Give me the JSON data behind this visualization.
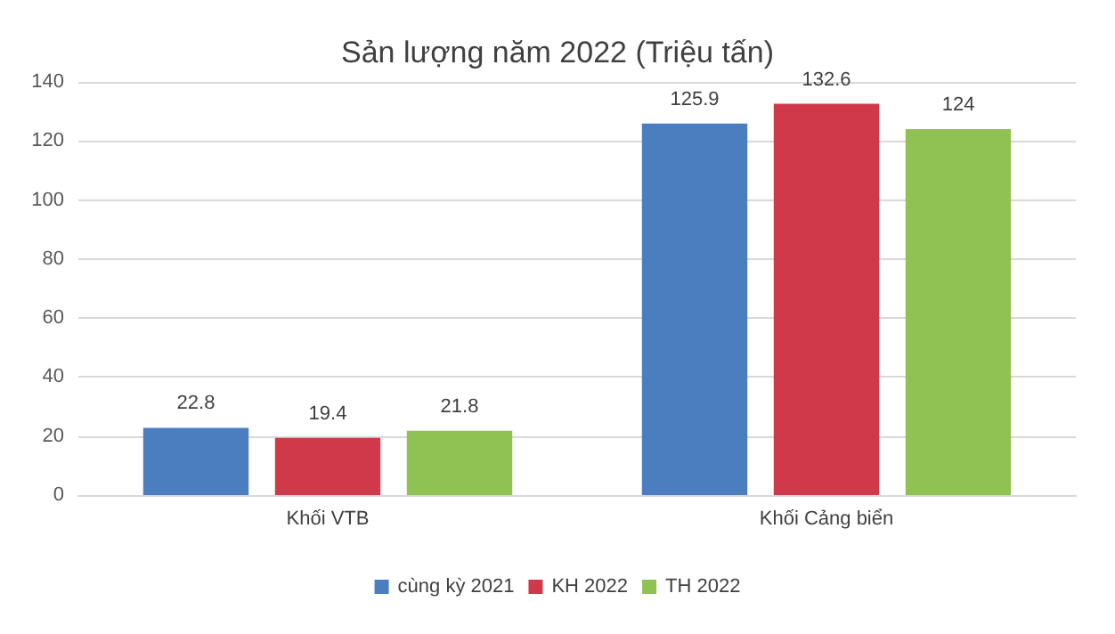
{
  "chart_data": {
    "type": "bar",
    "title": "Sản lượng năm 2022 (Triệu tấn)",
    "categories": [
      "Khối VTB",
      "Khối Cảng biển"
    ],
    "series": [
      {
        "name": "cùng kỳ 2021",
        "color": "#4a7ebf",
        "values": [
          22.8,
          125.9
        ]
      },
      {
        "name": "KH 2022",
        "color": "#d0394a",
        "values": [
          19.4,
          132.6
        ]
      },
      {
        "name": "TH 2022",
        "color": "#8fc253",
        "values": [
          21.8,
          124
        ]
      }
    ],
    "ylim": [
      0,
      140
    ],
    "yticks": [
      0,
      20,
      40,
      60,
      80,
      100,
      120,
      140
    ],
    "grid": "y",
    "legend": "bottom",
    "data_labels": true
  }
}
